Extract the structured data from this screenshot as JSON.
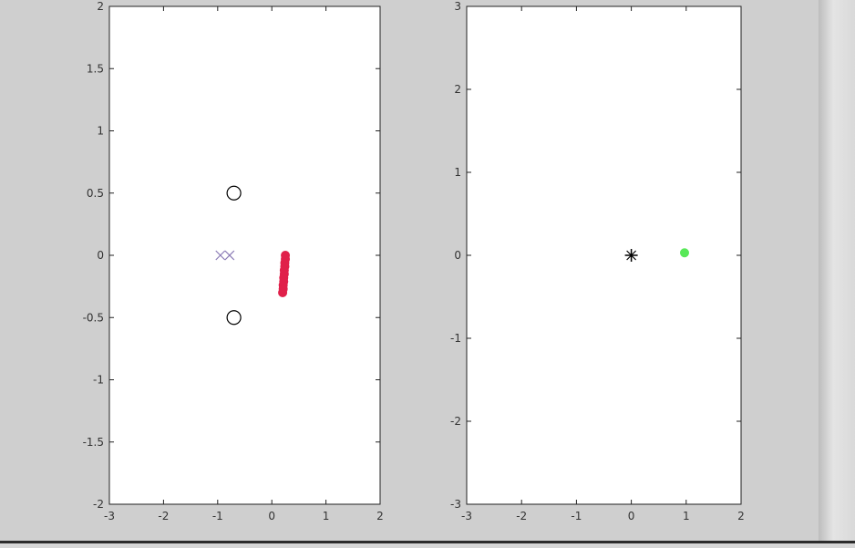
{
  "chart_data": [
    {
      "type": "scatter",
      "title": "",
      "xlabel": "",
      "ylabel": "",
      "xlim": [
        -3,
        2
      ],
      "ylim": [
        -2,
        2
      ],
      "xticks": [
        -3,
        -2,
        -1,
        0,
        1,
        2
      ],
      "yticks": [
        -2,
        -1.5,
        -1,
        -0.5,
        0,
        0.5,
        1,
        1.5,
        2
      ],
      "grid": false,
      "series": [
        {
          "marker": "o",
          "color": "#000000",
          "points": [
            [
              -0.7,
              0.5
            ],
            [
              -0.7,
              -0.5
            ]
          ]
        },
        {
          "marker": "x",
          "color": "#8a7ab5",
          "points": [
            [
              -0.95,
              0.0
            ],
            [
              -0.78,
              0.0
            ]
          ]
        },
        {
          "marker": "filled-dot",
          "color": "#e0204a",
          "points": [
            [
              0.25,
              0.0
            ],
            [
              0.25,
              -0.03
            ],
            [
              0.24,
              -0.06
            ],
            [
              0.24,
              -0.09
            ],
            [
              0.23,
              -0.12
            ],
            [
              0.23,
              -0.15
            ],
            [
              0.22,
              -0.18
            ],
            [
              0.22,
              -0.21
            ],
            [
              0.21,
              -0.24
            ],
            [
              0.21,
              -0.27
            ],
            [
              0.2,
              -0.3
            ]
          ]
        }
      ]
    },
    {
      "type": "scatter",
      "title": "",
      "xlabel": "",
      "ylabel": "",
      "xlim": [
        -3,
        2
      ],
      "ylim": [
        -3,
        3
      ],
      "xticks": [
        -3,
        -2,
        -1,
        0,
        1,
        2
      ],
      "yticks": [
        -3,
        -2,
        -1,
        0,
        1,
        2,
        3
      ],
      "grid": false,
      "series": [
        {
          "marker": "*",
          "color": "#000000",
          "points": [
            [
              0.0,
              0.0
            ]
          ]
        },
        {
          "marker": "filled-dot",
          "color": "#58e858",
          "points": [
            [
              0.97,
              0.03
            ]
          ]
        }
      ]
    }
  ]
}
